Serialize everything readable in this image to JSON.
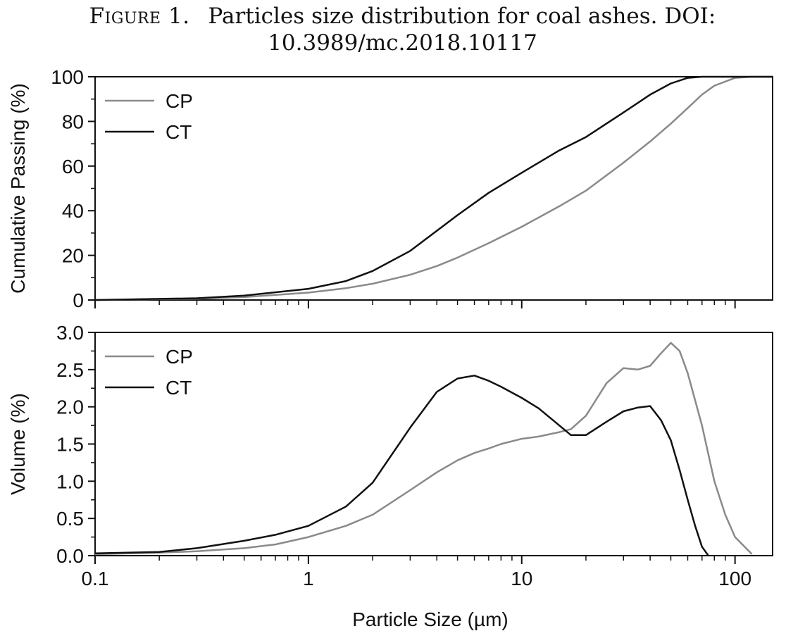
{
  "caption": {
    "label": "Figure 1.",
    "text": "Particles size distribution for coal ashes. DOI: 10.3989/mc.2018.10117"
  },
  "colors": {
    "CP": "#8a8a8a",
    "CT": "#111111"
  },
  "chart_data": [
    {
      "type": "line",
      "xscale": "log",
      "xlim": [
        0.1,
        150
      ],
      "ylim": [
        0,
        100
      ],
      "yticks": [
        0,
        20,
        40,
        60,
        80,
        100
      ],
      "ylabel": "Cumulative Passing (%)",
      "legend": "top-left",
      "series": [
        {
          "name": "CP",
          "x": [
            0.1,
            0.3,
            0.5,
            1,
            1.5,
            2,
            3,
            4,
            5,
            7,
            10,
            15,
            20,
            30,
            40,
            50,
            60,
            70,
            80,
            100,
            120,
            150
          ],
          "y": [
            0,
            0.6,
            1.3,
            3.3,
            5.3,
            7.3,
            11.3,
            15.2,
            19,
            25.5,
            32.8,
            42,
            49,
            61.5,
            71,
            79,
            86,
            92,
            96,
            99.5,
            100,
            100
          ]
        },
        {
          "name": "CT",
          "x": [
            0.1,
            0.3,
            0.5,
            1,
            1.5,
            2,
            3,
            4,
            5,
            7,
            10,
            15,
            20,
            30,
            40,
            50,
            60,
            70,
            80,
            100,
            150
          ],
          "y": [
            0,
            0.8,
            2,
            5,
            8.5,
            13,
            22,
            31,
            38,
            48,
            57,
            67,
            73,
            84,
            92,
            97,
            99.5,
            100,
            100,
            100,
            100
          ]
        }
      ]
    },
    {
      "type": "line",
      "xscale": "log",
      "xlim": [
        0.1,
        150
      ],
      "ylim": [
        0,
        3.0
      ],
      "yticks": [
        "0.0",
        "0.5",
        "1.0",
        "1.5",
        "2.0",
        "2.5",
        "3.0"
      ],
      "xticks": [
        "0.1",
        "1",
        "10",
        "100"
      ],
      "ylabel": "Volume (%)",
      "xlabel": "Particle Size (µm)",
      "legend": "top-left",
      "series": [
        {
          "name": "CP",
          "x": [
            0.1,
            0.2,
            0.3,
            0.5,
            0.7,
            1,
            1.5,
            2,
            3,
            4,
            5,
            6,
            7,
            8,
            10,
            12,
            15,
            17,
            20,
            25,
            30,
            35,
            40,
            45,
            50,
            55,
            60,
            70,
            80,
            90,
            100,
            120
          ],
          "y": [
            0.02,
            0.04,
            0.06,
            0.1,
            0.15,
            0.25,
            0.4,
            0.55,
            0.88,
            1.12,
            1.28,
            1.38,
            1.44,
            1.5,
            1.57,
            1.6,
            1.66,
            1.7,
            1.88,
            2.32,
            2.52,
            2.5,
            2.55,
            2.72,
            2.86,
            2.75,
            2.45,
            1.75,
            1.0,
            0.55,
            0.25,
            0.02
          ]
        },
        {
          "name": "CT",
          "x": [
            0.1,
            0.2,
            0.3,
            0.5,
            0.7,
            1,
            1.5,
            2,
            3,
            4,
            5,
            6,
            7,
            8,
            10,
            12,
            15,
            17,
            20,
            25,
            30,
            35,
            40,
            45,
            50,
            55,
            60,
            65,
            70,
            75
          ],
          "y": [
            0.03,
            0.05,
            0.1,
            0.2,
            0.28,
            0.4,
            0.66,
            0.98,
            1.72,
            2.2,
            2.38,
            2.42,
            2.35,
            2.27,
            2.12,
            1.98,
            1.75,
            1.62,
            1.62,
            1.8,
            1.94,
            1.99,
            2.01,
            1.82,
            1.55,
            1.15,
            0.75,
            0.4,
            0.12,
            0.0
          ]
        }
      ]
    }
  ]
}
